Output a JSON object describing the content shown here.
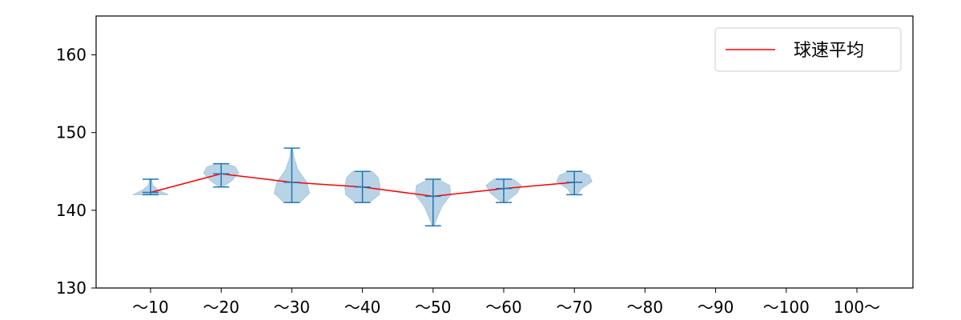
{
  "chart_data": {
    "type": "violin",
    "categories": [
      "〜10",
      "〜20",
      "〜30",
      "〜40",
      "〜50",
      "〜60",
      "〜70",
      "〜80",
      "〜90",
      "〜100",
      "100〜"
    ],
    "ylim": [
      130,
      165
    ],
    "yticks": [
      130,
      140,
      150,
      160
    ],
    "grid": false,
    "legend": {
      "position": "top-right",
      "entries": [
        {
          "label": "球速平均",
          "color": "#ff0000"
        }
      ]
    },
    "violins": [
      {
        "category": "〜10",
        "min": 142,
        "max": 144,
        "mean": 142.3,
        "density": [
          [
            142,
            1.0
          ],
          [
            142.6,
            0.45
          ],
          [
            143.2,
            0.12
          ],
          [
            144,
            0.05
          ]
        ]
      },
      {
        "category": "〜20",
        "min": 143,
        "max": 146,
        "mean": 144.7,
        "density": [
          [
            143,
            0.1
          ],
          [
            143.8,
            0.6
          ],
          [
            144.8,
            1.0
          ],
          [
            145.6,
            0.8
          ],
          [
            146,
            0.2
          ]
        ]
      },
      {
        "category": "〜30",
        "min": 141,
        "max": 148,
        "mean": 143.6,
        "density": [
          [
            141,
            0.45
          ],
          [
            142.2,
            1.0
          ],
          [
            143.6,
            0.85
          ],
          [
            145.2,
            0.35
          ],
          [
            146.8,
            0.12
          ],
          [
            148,
            0.04
          ]
        ]
      },
      {
        "category": "〜40",
        "min": 141,
        "max": 145,
        "mean": 143.0,
        "density": [
          [
            141,
            0.4
          ],
          [
            142,
            0.95
          ],
          [
            143,
            1.0
          ],
          [
            144.2,
            0.9
          ],
          [
            145,
            0.55
          ]
        ]
      },
      {
        "category": "〜50",
        "min": 138,
        "max": 144,
        "mean": 141.8,
        "density": [
          [
            138,
            0.04
          ],
          [
            139,
            0.22
          ],
          [
            140.5,
            0.5
          ],
          [
            142,
            1.0
          ],
          [
            143.2,
            0.95
          ],
          [
            144,
            0.25
          ]
        ]
      },
      {
        "category": "〜60",
        "min": 141,
        "max": 144,
        "mean": 142.8,
        "density": [
          [
            141,
            0.1
          ],
          [
            142.2,
            0.75
          ],
          [
            143.2,
            1.0
          ],
          [
            144,
            0.55
          ]
        ]
      },
      {
        "category": "〜70",
        "min": 142,
        "max": 145,
        "mean": 143.6,
        "density": [
          [
            142,
            0.15
          ],
          [
            142.8,
            0.4
          ],
          [
            143.7,
            1.0
          ],
          [
            144.5,
            0.85
          ],
          [
            145,
            0.3
          ]
        ]
      }
    ],
    "mean_line": {
      "name": "球速平均",
      "categories": [
        "〜10",
        "〜20",
        "〜30",
        "〜40",
        "〜50",
        "〜60",
        "〜70"
      ],
      "values": [
        142.3,
        144.7,
        143.6,
        143.0,
        141.8,
        142.8,
        143.6
      ]
    },
    "colors": {
      "violin_fill": "#a8c8e0",
      "violin_edge": "#1f77b4",
      "mean_line": "#ff0000"
    }
  }
}
